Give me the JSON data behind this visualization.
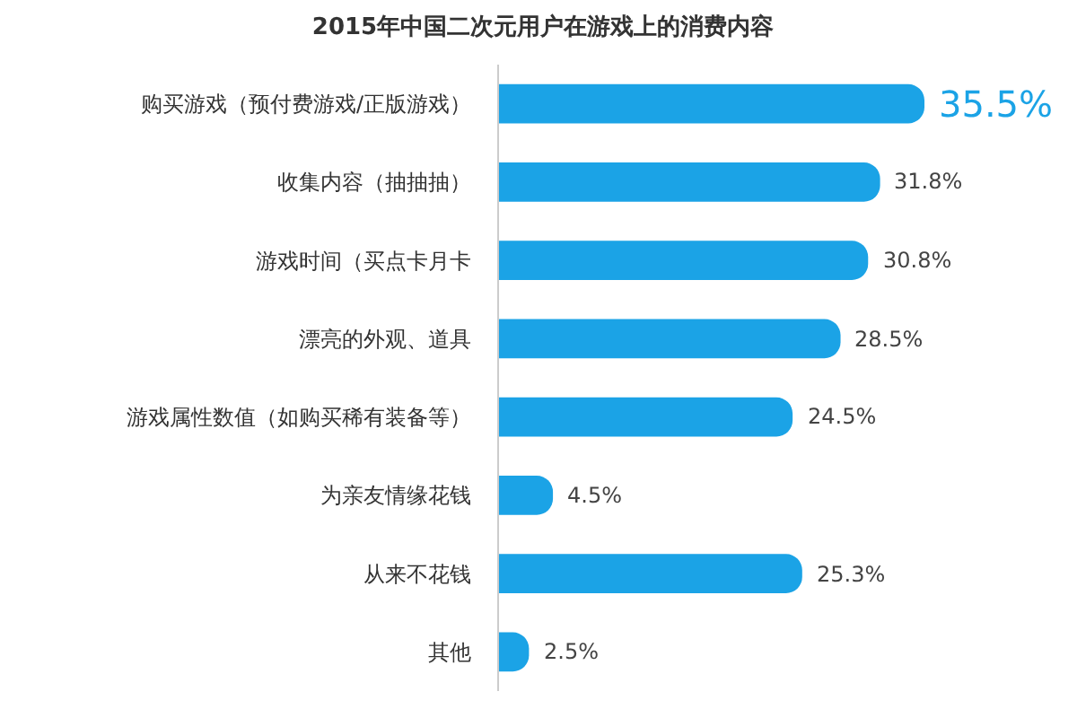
{
  "chart_data": {
    "type": "bar",
    "orientation": "horizontal",
    "title": "2015年中国二次元用户在游戏上的消费内容",
    "categories": [
      "购买游戏（预付费游戏/正版游戏）",
      "收集内容（抽抽抽）",
      "游戏时间（买点卡月卡",
      "漂亮的外观、道具",
      "游戏属性数值（如购买稀有装备等）",
      "为亲友情缘花钱",
      "从来不花钱",
      "其他"
    ],
    "values": [
      35.5,
      31.8,
      30.8,
      28.5,
      24.5,
      4.5,
      25.3,
      2.5
    ],
    "value_labels": [
      "35.5%",
      "31.8%",
      "30.8%",
      "28.5%",
      "24.5%",
      "4.5%",
      "25.3%",
      "2.5%"
    ],
    "color": "#1ba3e6",
    "xlim": [
      0,
      35.5
    ],
    "tick_labels": "y"
  }
}
